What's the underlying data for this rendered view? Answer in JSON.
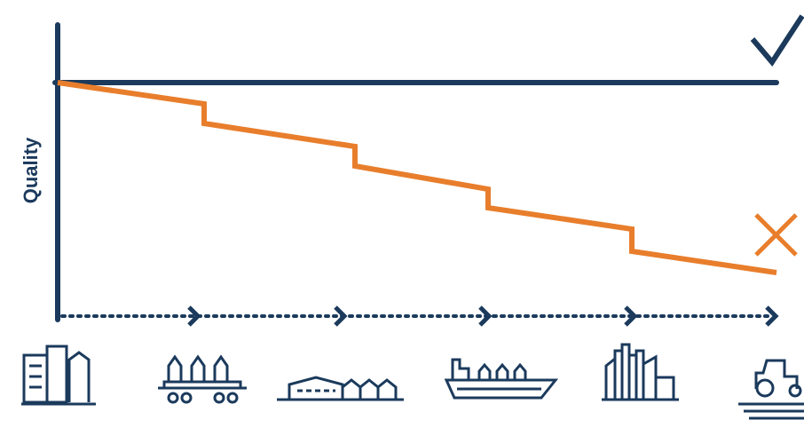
{
  "axis_label": "Quality"
}
